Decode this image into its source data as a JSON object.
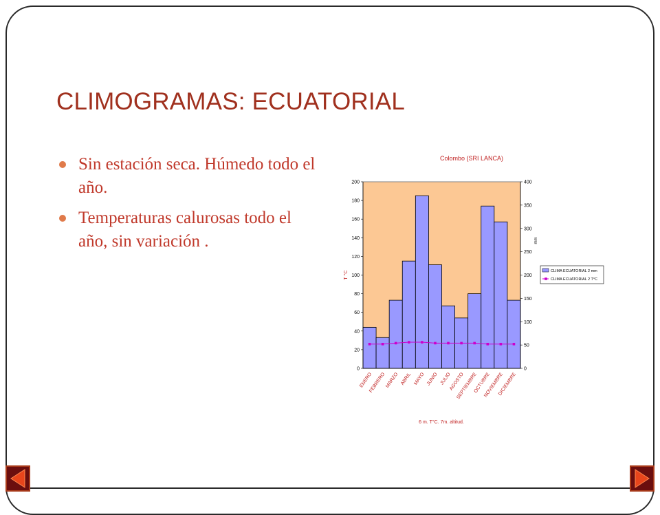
{
  "slide": {
    "title": "CLIMOGRAMAS: ECUATORIAL",
    "bullets": [
      "Sin estación seca. Húmedo todo el año.",
      "Temperaturas calurosas todo el año, sin variación ."
    ]
  },
  "nav": {
    "prev": "previous",
    "next": "next"
  },
  "chart_data": {
    "type": "bar",
    "title": "Colombo (SRI LANCA)",
    "categories": [
      "ENERO",
      "FEBRERO",
      "MARZO",
      "ABRIL",
      "MAYO",
      "JUNIO",
      "JULIO",
      "AGOSTO",
      "SEPTIEMBRE",
      "OCTUBRE",
      "NOVIEMBRE",
      "DICIEMBRE"
    ],
    "series": [
      {
        "name": "CLIMA ECUATORIAL 2 mm",
        "kind": "bar",
        "axis": "right",
        "values": [
          88,
          66,
          146,
          230,
          370,
          222,
          134,
          108,
          160,
          348,
          314,
          146
        ],
        "color": "#9999ff"
      },
      {
        "name": "CLIMA ECUATORIAL 2 T°C",
        "kind": "line",
        "axis": "left",
        "values": [
          26,
          26,
          27,
          28,
          28,
          27,
          27,
          27,
          27,
          26,
          26,
          26
        ],
        "color": "#cc00cc"
      }
    ],
    "ylabel_left": "T °C",
    "ylabel_right": "mm",
    "ylim_left": [
      0,
      200
    ],
    "ylim_right": [
      0,
      400
    ],
    "yticks_left": [
      "0",
      "20",
      "40",
      "60",
      "80",
      "100",
      "120",
      "140",
      "160",
      "180",
      "200"
    ],
    "yticks_right": [
      "0",
      "50",
      "100",
      "150",
      "200",
      "250",
      "300",
      "350",
      "400"
    ],
    "footnote": "6 m. T°C. 7m. altitud.",
    "plot_bg": "#fcc894",
    "legend": "right"
  }
}
